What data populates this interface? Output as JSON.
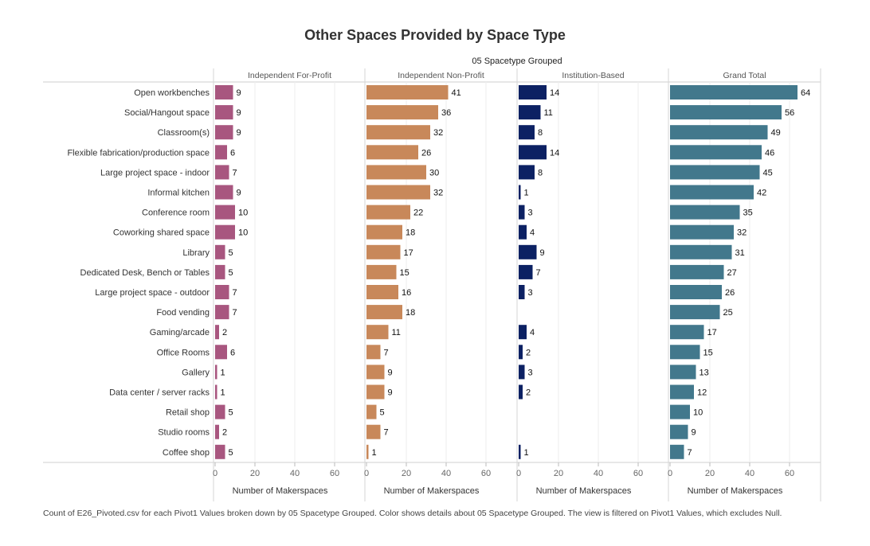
{
  "title": "Other Spaces Provided by Space Type",
  "footnote": "Count of E26_Pivoted.csv for each Pivot1 Values broken down by 05 Spacetype Grouped.  Color shows details about 05 Spacetype Grouped. The view is filtered on Pivot1 Values, which excludes Null.",
  "chart_data": {
    "type": "bar",
    "orientation": "horizontal",
    "group_header": "05 Spacetype Grouped",
    "xlabel": "Number of Makerspaces",
    "xlim": [
      0,
      70
    ],
    "ticks": [
      0,
      20,
      40,
      60
    ],
    "categories": [
      "Open workbenches",
      "Social/Hangout space",
      "Classroom(s)",
      "Flexible fabrication/production space",
      "Large project space - indoor",
      "Informal kitchen",
      "Conference room",
      "Coworking shared space",
      "Library",
      "Dedicated Desk, Bench or Tables",
      "Large project space - outdoor",
      "Food vending",
      "Gaming/arcade",
      "Office Rooms",
      "Gallery",
      "Data center / server racks",
      "Retail shop",
      "Studio rooms",
      "Coffee shop"
    ],
    "series": [
      {
        "name": "Independent For-Profit",
        "color": "#a8567f",
        "values": [
          9,
          9,
          9,
          6,
          7,
          9,
          10,
          10,
          5,
          5,
          7,
          7,
          2,
          6,
          1,
          1,
          5,
          2,
          5
        ]
      },
      {
        "name": "Independent Non-Profit",
        "color": "#c8885a",
        "values": [
          41,
          36,
          32,
          26,
          30,
          32,
          22,
          18,
          17,
          15,
          16,
          18,
          11,
          7,
          9,
          9,
          5,
          7,
          1
        ]
      },
      {
        "name": "Institution-Based",
        "color": "#0c2163",
        "values": [
          14,
          11,
          8,
          14,
          8,
          1,
          3,
          4,
          9,
          7,
          3,
          null,
          4,
          2,
          3,
          2,
          null,
          null,
          1
        ]
      },
      {
        "name": "Grand Total",
        "color": "#42788c",
        "values": [
          64,
          56,
          49,
          46,
          45,
          42,
          35,
          32,
          31,
          27,
          26,
          25,
          17,
          15,
          13,
          12,
          10,
          9,
          7
        ]
      }
    ],
    "grid": true,
    "legend": "none"
  }
}
